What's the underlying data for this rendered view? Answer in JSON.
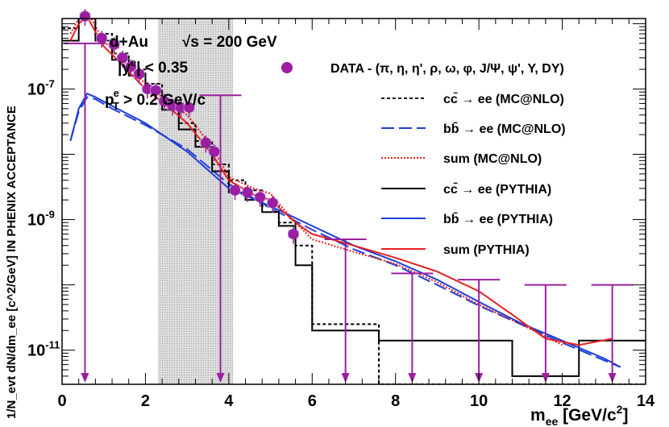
{
  "chart_data": {
    "type": "line",
    "x_axis": {
      "label_main": "m",
      "label_sub": "ee",
      "label_unit": " [GeV/c",
      "label_unit_sup": "2",
      "label_unit_end": "]",
      "range": [
        0,
        14
      ],
      "tick_labels": [
        "0",
        "2",
        "4",
        "6",
        "8",
        "10",
        "12",
        "14"
      ]
    },
    "y_axis": {
      "label": "1/N_evt dN/dm_ee [c^2/GeV] IN PHENIX ACCEPTANCE",
      "scale": "log",
      "range": [
        3e-12,
        1.2e-06
      ],
      "tick_labels": [
        {
          "value": 1e-07,
          "base": "10",
          "exp": "-7"
        },
        {
          "value": 1e-09,
          "base": "10",
          "exp": "-9"
        },
        {
          "value": 1e-11,
          "base": "10",
          "exp": "-11"
        }
      ]
    },
    "annotations": {
      "system": "d+Au",
      "energy": "√s = 200 GeV",
      "rapidity": "|y",
      "rapidity_sup": "e",
      "rapidity_end": "| < 0.35",
      "pt": "p",
      "pt_sup": "e",
      "pt_sub": "T",
      "pt_end": " > 0.2 GeV/c"
    },
    "legend": [
      {
        "label": "DATA - (π, η, η', ρ, ω, φ, J/Ψ, ψ', Υ, DY)",
        "style": "marker",
        "color": "#9b1fa0"
      },
      {
        "label": "cc̄ → ee (MC@NLO)",
        "style": "dashed",
        "color": "#000000"
      },
      {
        "label": "bb̄ → ee (MC@NLO)",
        "style": "longdash",
        "color": "#1f3fd6"
      },
      {
        "label": "sum (MC@NLO)",
        "style": "dotted",
        "color": "#e8201e"
      },
      {
        "label": "cc̄ → ee (PYTHIA)",
        "style": "solid",
        "color": "#000000"
      },
      {
        "label": "bb̄ → ee (PYTHIA)",
        "style": "solid",
        "color": "#1f3fd6"
      },
      {
        "label": "sum (PYTHIA)",
        "style": "solid",
        "color": "#e8201e"
      }
    ],
    "excluded_region": {
      "x": [
        2.3,
        4.1
      ],
      "fill": "pattern"
    },
    "data_points": {
      "x": [
        0.55,
        0.95,
        1.25,
        1.45,
        1.65,
        1.85,
        2.05,
        2.25,
        2.45,
        2.65,
        2.85,
        3.05,
        3.45,
        3.65,
        4.15,
        4.45,
        4.75,
        5.05,
        5.55
      ],
      "y": [
        1.3e-06,
        6e-07,
        4.8e-07,
        3e-07,
        2.2e-07,
        1.7e-07,
        1e-07,
        9.5e-08,
        6.5e-08,
        5.5e-08,
        5.2e-08,
        5.2e-08,
        1.5e-08,
        1.1e-08,
        2.8e-09,
        2.6e-09,
        2.2e-09,
        1.8e-09,
        6e-10
      ]
    },
    "upper_limits": {
      "x": [
        0.55,
        3.8,
        6.8,
        8.4,
        10.0,
        11.6,
        13.2
      ],
      "y": [
        5e-07,
        8e-08,
        5e-10,
        1.5e-10,
        1.2e-10,
        1e-10,
        1e-10
      ]
    },
    "series": [
      {
        "name": "cc̄ → ee (MC@NLO)",
        "type": "step",
        "edges": [
          0,
          0.4,
          0.8,
          1.2,
          1.6,
          2.0,
          2.4,
          2.8,
          3.2,
          3.6,
          4.0,
          4.4,
          4.8,
          5.2,
          5.6,
          6.0,
          7.6,
          9.2,
          10.8,
          12.4,
          14.0
        ],
        "values": [
          8.5e-07,
          1.6e-06,
          7e-07,
          3.5e-07,
          2e-07,
          1.2e-07,
          6.5e-08,
          3e-08,
          1.6e-08,
          7e-09,
          4e-09,
          2.8e-09,
          1.6e-09,
          9e-10,
          4e-10,
          2.5e-11,
          3e-12,
          3e-12,
          3e-12,
          3e-12
        ]
      },
      {
        "name": "bb̄ → ee (MC@NLO)",
        "type": "curve",
        "x": [
          0.2,
          0.4,
          0.6,
          0.8,
          1.2,
          2.0,
          3.0,
          4.0,
          5.0,
          6.0,
          7.0,
          8.0,
          9.0,
          10.0,
          11.0,
          12.0,
          13.0,
          13.4
        ],
        "y": [
          1.6e-08,
          4.5e-08,
          7.5e-08,
          7e-08,
          5e-08,
          2.8e-08,
          1.2e-08,
          3.5e-09,
          1.5e-09,
          7e-10,
          3.5e-10,
          2e-10,
          1e-10,
          4.8e-11,
          2.5e-11,
          1.3e-11,
          7e-12,
          5.5e-12
        ]
      },
      {
        "name": "sum (MC@NLO)",
        "type": "curve",
        "x": [
          0.2,
          0.4,
          0.6,
          0.8,
          1.0,
          1.4,
          2.0,
          2.6,
          3.0,
          3.6,
          4.0,
          4.6,
          5.0,
          5.6,
          6.0,
          7.0,
          8.0,
          9.0,
          10.0,
          11.0,
          12.0
        ],
        "y": [
          7e-07,
          1.2e-06,
          1.6e-06,
          9e-07,
          5.5e-07,
          3e-07,
          1.2e-07,
          6e-08,
          4e-08,
          1.3e-08,
          4.5e-09,
          3e-09,
          2.5e-09,
          9e-10,
          5e-10,
          3.2e-10,
          2.1e-10,
          1.1e-10,
          5e-11,
          2.5e-11,
          1.2e-11
        ]
      },
      {
        "name": "cc̄ → ee (PYTHIA)",
        "type": "step",
        "edges": [
          0,
          0.4,
          0.8,
          1.2,
          1.6,
          2.0,
          2.4,
          2.8,
          3.2,
          3.6,
          4.0,
          4.4,
          4.8,
          5.2,
          5.6,
          6.0,
          7.6,
          9.2,
          10.8,
          12.4,
          14.0
        ],
        "values": [
          5.5e-07,
          1.2e-06,
          5.5e-07,
          2.8e-07,
          1.6e-07,
          9e-08,
          4.8e-08,
          2.4e-08,
          1.3e-08,
          5.5e-09,
          2.6e-09,
          2e-09,
          1.3e-09,
          8e-10,
          2e-10,
          2e-11,
          1.4e-11,
          1.4e-11,
          4e-12,
          1.4e-11
        ]
      },
      {
        "name": "bb̄ → ee (PYTHIA)",
        "type": "curve",
        "x": [
          0.2,
          0.4,
          0.6,
          0.8,
          1.2,
          2.0,
          3.0,
          4.0,
          5.0,
          6.0,
          7.0,
          8.0,
          9.0,
          10.0,
          11.0,
          12.0,
          13.0,
          13.4
        ],
        "y": [
          1.6e-08,
          5e-08,
          8.5e-08,
          7.5e-08,
          5.5e-08,
          3e-08,
          1.1e-08,
          3e-09,
          1.6e-09,
          8e-10,
          4e-10,
          2.3e-10,
          1.2e-10,
          5.5e-11,
          2.6e-11,
          1.4e-11,
          7.5e-12,
          5.5e-12
        ]
      },
      {
        "name": "sum (PYTHIA)",
        "type": "curve",
        "x": [
          0.2,
          0.4,
          0.6,
          0.8,
          1.0,
          1.4,
          2.0,
          2.6,
          3.0,
          3.6,
          4.0,
          4.6,
          5.0,
          5.6,
          6.0,
          7.0,
          8.0,
          9.0,
          10.0,
          10.8,
          11.6,
          12.4,
          13.2
        ],
        "y": [
          5.5e-07,
          1e-06,
          1.3e-06,
          7.5e-07,
          4.5e-07,
          2.5e-07,
          1e-07,
          5e-08,
          3e-08,
          1e-08,
          4e-09,
          2.4e-09,
          2e-09,
          9e-10,
          6e-10,
          4e-10,
          2.6e-10,
          1.6e-10,
          8e-11,
          3.5e-11,
          1.5e-11,
          1.2e-11,
          1.5e-11
        ]
      }
    ]
  }
}
